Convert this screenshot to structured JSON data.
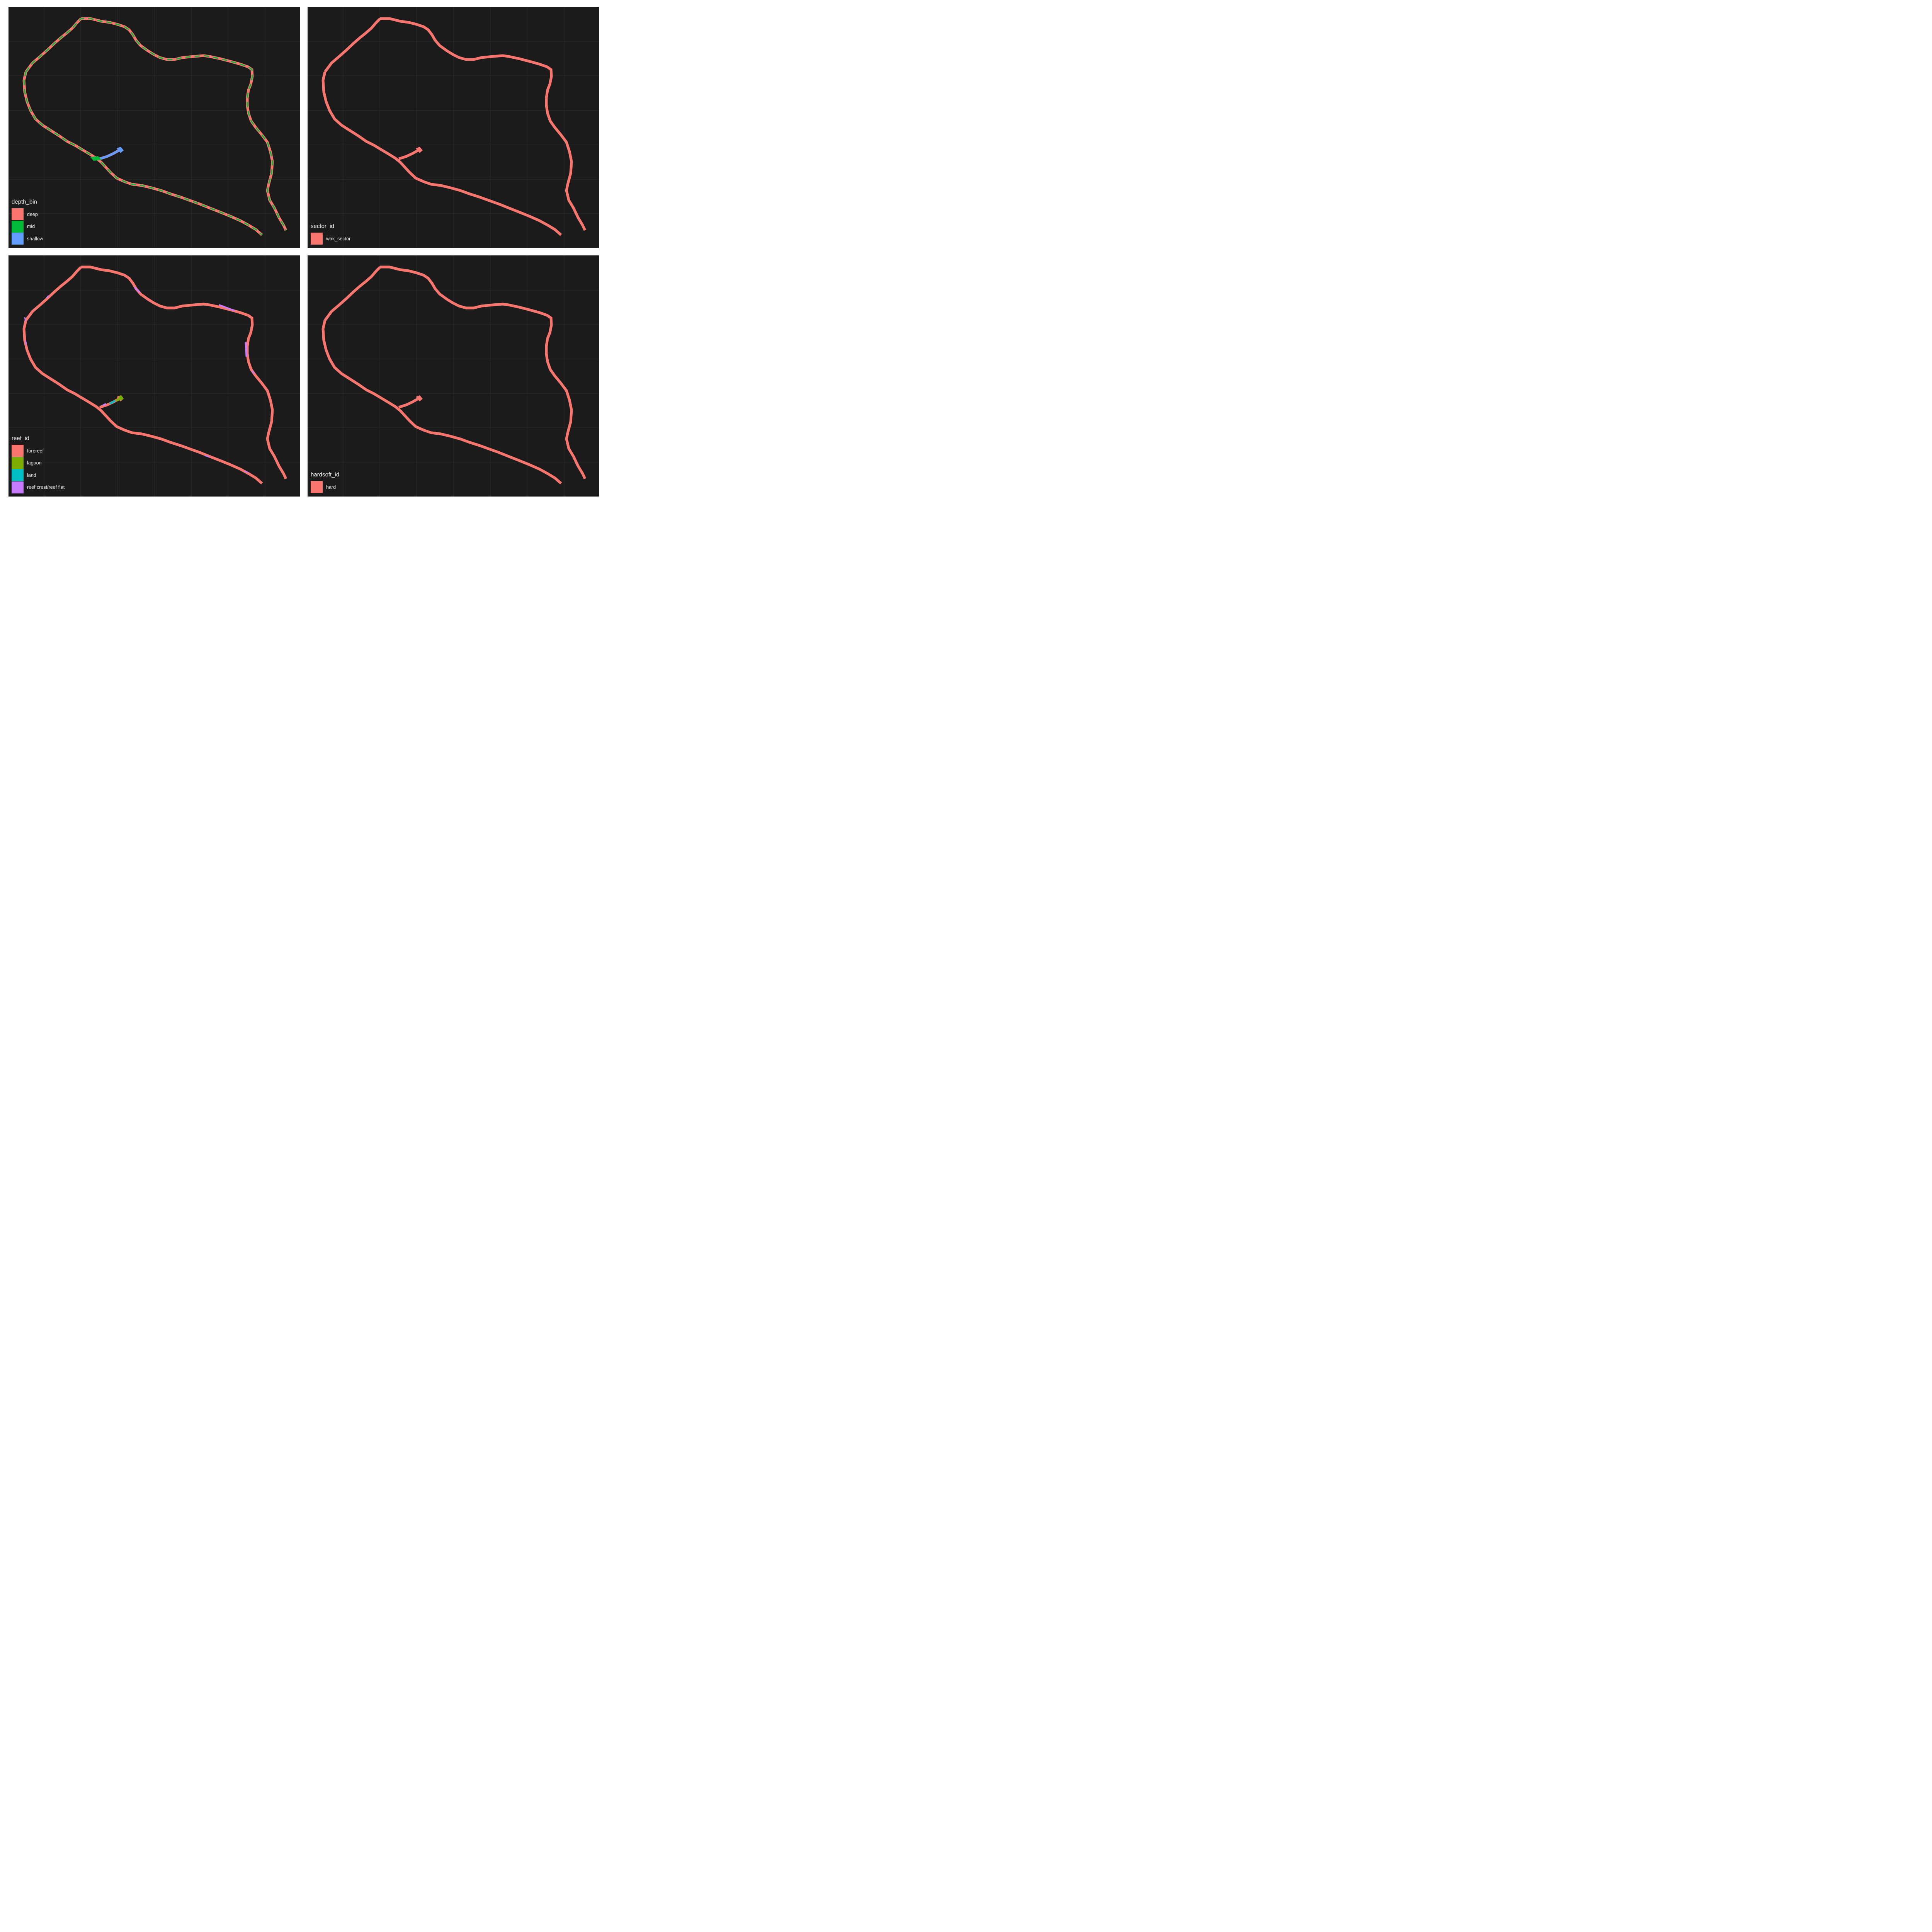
{
  "colors": {
    "background": "#1b1b1c",
    "grid": "#2c2c2d",
    "deep": "#f8766d",
    "mid": "#00ba38",
    "shallow": "#619cff",
    "forereef": "#f8766d",
    "lagoon": "#7cae00",
    "land": "#00bfc4",
    "reef_crest": "#c77cff"
  },
  "panels": [
    {
      "id": "depth",
      "overlay": "mid",
      "legend": {
        "title": "depth_bin",
        "items": [
          {
            "label": "deep",
            "color": "#f8766d"
          },
          {
            "label": "mid",
            "color": "#00ba38"
          },
          {
            "label": "shallow",
            "color": "#619cff"
          }
        ]
      }
    },
    {
      "id": "sector",
      "overlay": "none",
      "legend": {
        "title": "sector_id",
        "items": [
          {
            "label": "wak_sector",
            "color": "#f8766d"
          }
        ]
      }
    },
    {
      "id": "reef",
      "overlay": "reef",
      "legend": {
        "title": "reef_id",
        "items": [
          {
            "label": "forereef",
            "color": "#f8766d"
          },
          {
            "label": "lagoon",
            "color": "#7cae00"
          },
          {
            "label": "land",
            "color": "#00bfc4"
          },
          {
            "label": "reef crest/reef flat",
            "color": "#c77cff"
          }
        ]
      }
    },
    {
      "id": "hardsoft",
      "overlay": "none",
      "legend": {
        "title": "hardsoft_id",
        "items": [
          {
            "label": "hard",
            "color": "#f8766d"
          }
        ]
      }
    }
  ]
}
